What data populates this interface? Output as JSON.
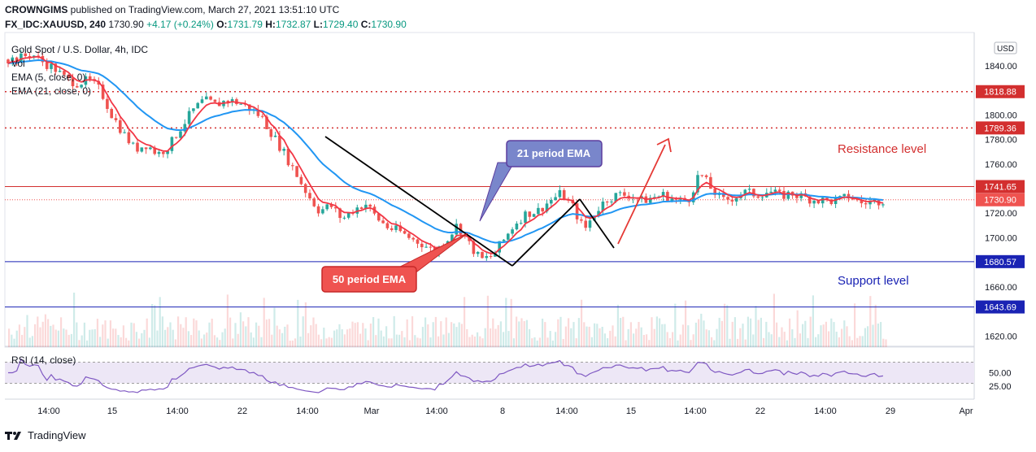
{
  "header": {
    "publisher": "CROWNGIMS",
    "published_text": "published on TradingView.com, March 27, 2021 13:51:10 UTC",
    "symbol": "FX_IDC:XAUUSD, 240",
    "last": "1730.90",
    "change": "+4.17 (+0.24%)",
    "o_label": "O:",
    "o": "1731.79",
    "h_label": "H:",
    "h": "1732.87",
    "l_label": "L:",
    "l": "1729.40",
    "c_label": "C:",
    "c": "1730.90"
  },
  "legend": {
    "title": "Gold Spot / U.S. Dollar, 4h, IDC",
    "vol": "Vol",
    "ema5": "EMA (5, close, 0)",
    "ema21": "EMA (21, close, 0)",
    "rsi": "RSI (14, close)"
  },
  "currency_badge": "USD",
  "footer": {
    "brand": "TradingView"
  },
  "colors": {
    "up": "#26a69a",
    "down": "#ef5350",
    "ema_red": "#f23645",
    "ema_blue": "#2196f3",
    "resistance": "#d32f2f",
    "support": "#1a23b4",
    "rsi": "#7e57c2",
    "rsi_band": "#ede7f6"
  },
  "chart_data": {
    "type": "candlestick",
    "price_axis": {
      "ticks": [
        1620,
        1640,
        1660,
        1680,
        1700,
        1720,
        1740,
        1760,
        1780,
        1800,
        1820,
        1840,
        1860
      ],
      "tick_labels": [
        "1620.00",
        "",
        "1660.00",
        "",
        "1700.00",
        "1720.00",
        "",
        "1760.00",
        "1780.00",
        "1800.00",
        "",
        "1840.00",
        ""
      ],
      "range": [
        1611,
        1867
      ]
    },
    "time_axis": [
      "14:00",
      "15",
      "14:00",
      "22",
      "14:00",
      "Mar",
      "14:00",
      "8",
      "14:00",
      "15",
      "14:00",
      "22",
      "14:00",
      "29",
      "Apr"
    ],
    "price_labels": [
      {
        "value": 1818.88,
        "text": "1818.88",
        "kind": "resistance"
      },
      {
        "value": 1789.36,
        "text": "1789.36",
        "kind": "resistance"
      },
      {
        "value": 1741.65,
        "text": "1741.65",
        "kind": "resistance"
      },
      {
        "value": 1730.9,
        "text": "1730.90",
        "kind": "last"
      },
      {
        "value": 1680.57,
        "text": "1680.57",
        "kind": "support"
      },
      {
        "value": 1643.69,
        "text": "1643.69",
        "kind": "support"
      }
    ],
    "levels": [
      {
        "value": 1818.88,
        "style": "dotted",
        "kind": "resistance"
      },
      {
        "value": 1789.36,
        "style": "dotted",
        "kind": "resistance"
      },
      {
        "value": 1741.65,
        "style": "solid",
        "kind": "resistance"
      },
      {
        "value": 1680.57,
        "style": "solid",
        "kind": "support"
      },
      {
        "value": 1643.69,
        "style": "solid",
        "kind": "support"
      }
    ],
    "close_path": [
      1845,
      1846,
      1850,
      1843,
      1838,
      1829,
      1826,
      1828,
      1820,
      1800,
      1785,
      1772,
      1776,
      1768,
      1775,
      1790,
      1803,
      1812,
      1808,
      1812,
      1810,
      1805,
      1798,
      1783,
      1768,
      1752,
      1735,
      1722,
      1726,
      1715,
      1723,
      1728,
      1716,
      1708,
      1705,
      1699,
      1695,
      1688,
      1698,
      1711,
      1695,
      1682,
      1685,
      1698,
      1712,
      1720,
      1722,
      1730,
      1736,
      1725,
      1706,
      1722,
      1732,
      1735,
      1735,
      1730,
      1733,
      1735,
      1730,
      1730,
      1753,
      1740,
      1730,
      1733,
      1737,
      1735,
      1738,
      1734,
      1736,
      1733,
      1731,
      1730,
      1730,
      1734,
      1728,
      1729,
      1731
    ],
    "rsi_ticks": [
      25,
      50
    ],
    "annotations": {
      "resistance_text": "Resistance level",
      "support_text": "Support level",
      "ema21_callout": "21 period EMA",
      "ema50_callout": "50 period EMA"
    }
  }
}
